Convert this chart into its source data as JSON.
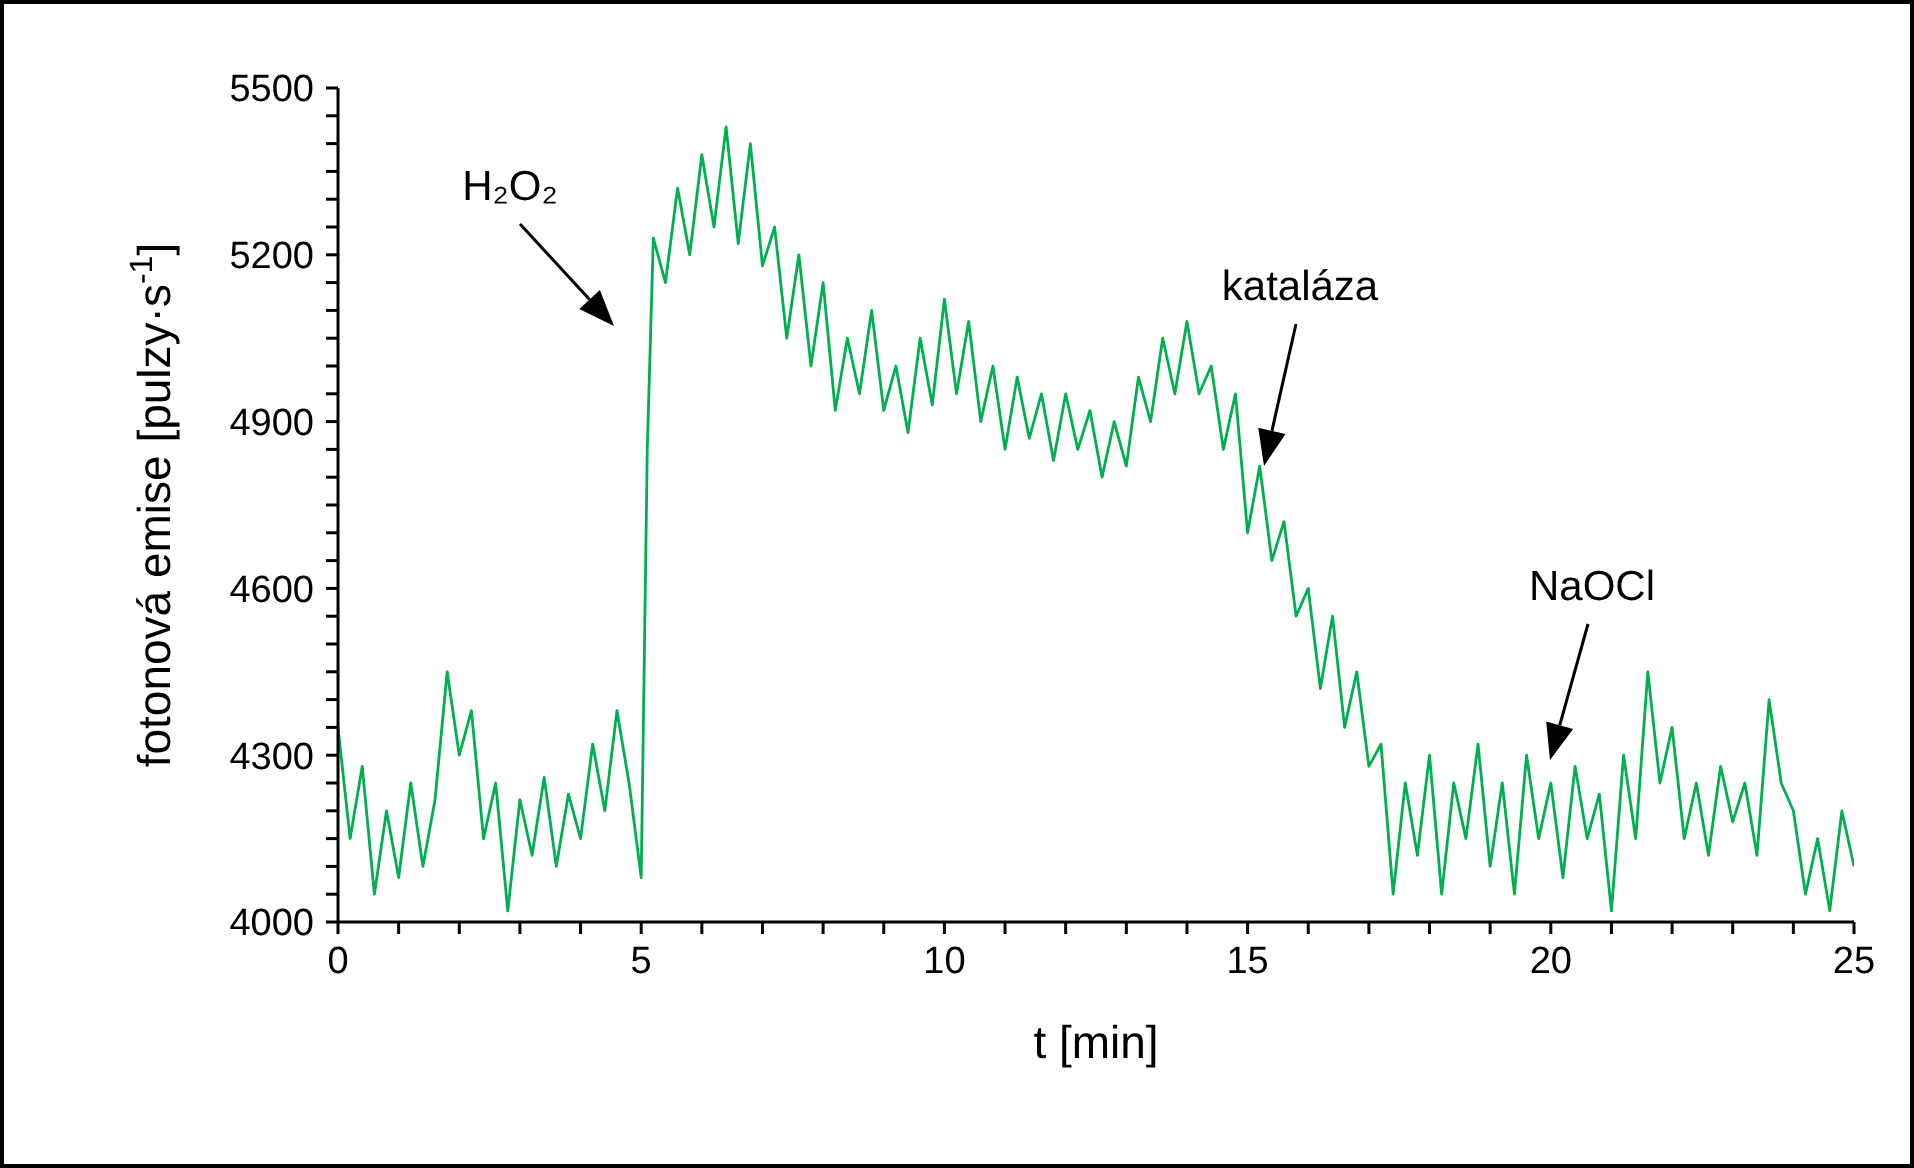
{
  "chart_data": {
    "type": "line",
    "xlabel": "t [min]",
    "ylabel": "fotonová emise [pulzy·s$^{-1}$]",
    "xlim": [
      0,
      25
    ],
    "ylim": [
      4000,
      5500
    ],
    "xticks": [
      0,
      {
        "value": 1,
        "label": null
      },
      {
        "value": 2,
        "label": null
      },
      {
        "value": 3,
        "label": null
      },
      {
        "value": 4,
        "label": null
      },
      5,
      {
        "value": 6,
        "label": null
      },
      {
        "value": 7,
        "label": null
      },
      {
        "value": 8,
        "label": null
      },
      {
        "value": 9,
        "label": null
      },
      10,
      {
        "value": 11,
        "label": null
      },
      {
        "value": 12,
        "label": null
      },
      {
        "value": 13,
        "label": null
      },
      {
        "value": 14,
        "label": null
      },
      15,
      {
        "value": 16,
        "label": null
      },
      {
        "value": 17,
        "label": null
      },
      {
        "value": 18,
        "label": null
      },
      {
        "value": 19,
        "label": null
      },
      20,
      {
        "value": 21,
        "label": null
      },
      {
        "value": 22,
        "label": null
      },
      {
        "value": 23,
        "label": null
      },
      {
        "value": 24,
        "label": null
      },
      25
    ],
    "yticks": [
      4000,
      {
        "value": 4050,
        "label": null
      },
      {
        "value": 4100,
        "label": null
      },
      {
        "value": 4150,
        "label": null
      },
      {
        "value": 4200,
        "label": null
      },
      {
        "value": 4250,
        "label": null
      },
      4300,
      {
        "value": 4350,
        "label": null
      },
      {
        "value": 4400,
        "label": null
      },
      {
        "value": 4450,
        "label": null
      },
      {
        "value": 4500,
        "label": null
      },
      {
        "value": 4550,
        "label": null
      },
      4600,
      {
        "value": 4650,
        "label": null
      },
      {
        "value": 4700,
        "label": null
      },
      {
        "value": 4750,
        "label": null
      },
      {
        "value": 4800,
        "label": null
      },
      {
        "value": 4850,
        "label": null
      },
      4900,
      {
        "value": 4950,
        "label": null
      },
      {
        "value": 5000,
        "label": null
      },
      {
        "value": 5050,
        "label": null
      },
      {
        "value": 5100,
        "label": null
      },
      {
        "value": 5150,
        "label": null
      },
      5200,
      {
        "value": 5250,
        "label": null
      },
      {
        "value": 5300,
        "label": null
      },
      {
        "value": 5350,
        "label": null
      },
      {
        "value": 5400,
        "label": null
      },
      {
        "value": 5450,
        "label": null
      },
      5500
    ],
    "marker": "none",
    "line_style": "solid",
    "x": [
      0,
      0.2,
      0.4,
      0.6,
      0.8,
      1,
      1.2,
      1.4,
      1.6,
      1.8,
      2,
      2.2,
      2.4,
      2.6,
      2.8,
      3,
      3.2,
      3.4,
      3.6,
      3.8,
      4,
      4.2,
      4.4,
      4.6,
      4.8,
      5,
      5.1,
      5.2,
      5.4,
      5.6,
      5.8,
      6,
      6.2,
      6.4,
      6.6,
      6.8,
      7,
      7.2,
      7.4,
      7.6,
      7.8,
      8,
      8.2,
      8.4,
      8.6,
      8.8,
      9,
      9.2,
      9.4,
      9.6,
      9.8,
      10,
      10.2,
      10.4,
      10.6,
      10.8,
      11,
      11.2,
      11.4,
      11.6,
      11.8,
      12,
      12.2,
      12.4,
      12.6,
      12.8,
      13,
      13.2,
      13.4,
      13.6,
      13.8,
      14,
      14.2,
      14.4,
      14.6,
      14.8,
      15,
      15.2,
      15.4,
      15.6,
      15.8,
      16,
      16.2,
      16.4,
      16.6,
      16.8,
      17,
      17.2,
      17.4,
      17.6,
      17.8,
      18,
      18.2,
      18.4,
      18.6,
      18.8,
      19,
      19.2,
      19.4,
      19.6,
      19.8,
      20,
      20.2,
      20.4,
      20.6,
      20.8,
      21,
      21.2,
      21.4,
      21.6,
      21.8,
      22,
      22.2,
      22.4,
      22.6,
      22.8,
      23,
      23.2,
      23.4,
      23.6,
      23.8,
      24,
      24.2,
      24.4,
      24.6,
      24.8,
      25
    ],
    "series": [
      {
        "color": "#00b050",
        "values": [
          4350,
          4150,
          4280,
          4050,
          4200,
          4080,
          4250,
          4100,
          4220,
          4450,
          4300,
          4380,
          4150,
          4250,
          4020,
          4220,
          4120,
          4260,
          4100,
          4230,
          4150,
          4320,
          4200,
          4380,
          4250,
          4080,
          4850,
          5230,
          5150,
          5320,
          5200,
          5380,
          5250,
          5430,
          5220,
          5400,
          5180,
          5250,
          5050,
          5200,
          5000,
          5150,
          4920,
          5050,
          4950,
          5100,
          4920,
          5000,
          4880,
          5050,
          4930,
          5120,
          4950,
          5080,
          4900,
          5000,
          4850,
          4980,
          4870,
          4950,
          4830,
          4950,
          4850,
          4920,
          4800,
          4900,
          4820,
          4980,
          4900,
          5050,
          4950,
          5080,
          4950,
          5000,
          4850,
          4950,
          4700,
          4820,
          4650,
          4720,
          4550,
          4600,
          4420,
          4550,
          4350,
          4450,
          4280,
          4320,
          4050,
          4250,
          4120,
          4300,
          4050,
          4250,
          4150,
          4320,
          4100,
          4250,
          4050,
          4300,
          4150,
          4250,
          4080,
          4280,
          4150,
          4230,
          4020,
          4300,
          4150,
          4450,
          4250,
          4350,
          4150,
          4250,
          4120,
          4280,
          4180,
          4250,
          4120,
          4400,
          4250,
          4200,
          4050,
          4150,
          4020,
          4200,
          4100
        ]
      }
    ],
    "annotations": [
      "H₂O₂",
      "kataláza",
      "NaOCl"
    ]
  }
}
